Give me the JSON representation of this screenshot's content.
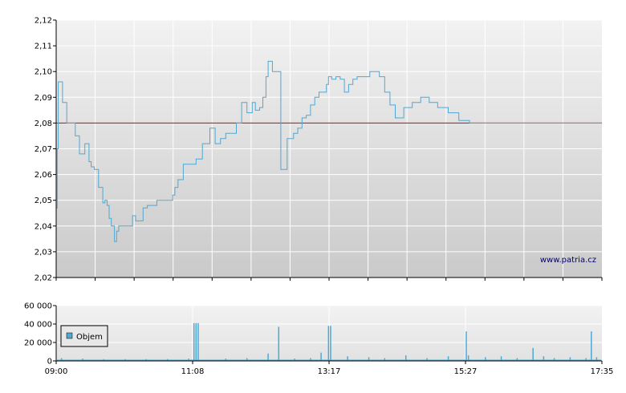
{
  "watermark": "www.patria.cz",
  "colors": {
    "price_line": "#4fa8d4",
    "reference_line": "#cc0000",
    "volume_bar": "#4fa8d4"
  },
  "chart_data": [
    {
      "type": "line",
      "title": "",
      "ylim": [
        2.02,
        2.12
      ],
      "y_ticks": [
        "2,02",
        "2,03",
        "2,04",
        "2,05",
        "2,06",
        "2,07",
        "2,08",
        "2,09",
        "2,10",
        "2,11",
        "2,12"
      ],
      "x_range": [
        "09:00",
        "17:35"
      ],
      "grid": true,
      "reference_line": 2.08,
      "series": [
        {
          "x": [
            "09:00",
            "09:01",
            "09:02",
            "09:04",
            "09:06",
            "09:08",
            "09:10",
            "09:12",
            "09:15",
            "09:18",
            "09:22",
            "09:27",
            "09:31",
            "09:33",
            "09:36",
            "09:40",
            "09:44",
            "09:46",
            "09:48",
            "09:50",
            "09:52",
            "09:55",
            "09:57",
            "09:59",
            "10:02",
            "10:05",
            "10:09",
            "10:12",
            "10:15",
            "10:18",
            "10:22",
            "10:26",
            "10:30",
            "10:35",
            "10:40",
            "10:45",
            "10:50",
            "10:52",
            "10:55",
            "11:00",
            "11:04",
            "11:08",
            "11:12",
            "11:18",
            "11:25",
            "11:30",
            "11:35",
            "11:40",
            "11:45",
            "11:50",
            "11:55",
            "12:00",
            "12:05",
            "12:08",
            "12:12",
            "12:15",
            "12:18",
            "12:20",
            "12:24",
            "12:28",
            "12:32",
            "12:38",
            "12:44",
            "12:48",
            "12:52",
            "12:56",
            "13:00",
            "13:04",
            "13:08",
            "13:12",
            "13:15",
            "13:17",
            "13:20",
            "13:24",
            "13:28",
            "13:32",
            "13:36",
            "13:40",
            "13:44",
            "13:48",
            "13:52",
            "13:56",
            "14:00",
            "14:05",
            "14:10",
            "14:15",
            "14:20",
            "14:28",
            "14:36",
            "14:44",
            "14:52",
            "15:00",
            "15:10",
            "15:20",
            "15:30",
            "15:40",
            "15:50",
            "16:00",
            "16:10",
            "16:20",
            "16:30",
            "16:35",
            "16:40",
            "16:45",
            "16:50",
            "16:55",
            "17:00",
            "17:05",
            "17:10",
            "17:15",
            "17:20",
            "17:25",
            "17:30",
            "17:35"
          ],
          "values": [
            2.047,
            2.07,
            2.096,
            2.096,
            2.088,
            2.088,
            2.08,
            2.08,
            2.08,
            2.075,
            2.068,
            2.072,
            2.065,
            2.063,
            2.062,
            2.055,
            2.049,
            2.05,
            2.048,
            2.043,
            2.04,
            2.034,
            2.038,
            2.04,
            2.04,
            2.04,
            2.04,
            2.044,
            2.042,
            2.042,
            2.047,
            2.048,
            2.048,
            2.05,
            2.05,
            2.05,
            2.052,
            2.055,
            2.058,
            2.064,
            2.064,
            2.064,
            2.066,
            2.072,
            2.078,
            2.072,
            2.074,
            2.076,
            2.076,
            2.08,
            2.088,
            2.084,
            2.088,
            2.085,
            2.086,
            2.09,
            2.098,
            2.104,
            2.1,
            2.1,
            2.062,
            2.074,
            2.076,
            2.078,
            2.082,
            2.083,
            2.087,
            2.09,
            2.092,
            2.092,
            2.095,
            2.098,
            2.097,
            2.098,
            2.097,
            2.092,
            2.095,
            2.097,
            2.098,
            2.098,
            2.098,
            2.1,
            2.1,
            2.098,
            2.092,
            2.087,
            2.082,
            2.086,
            2.088,
            2.09,
            2.088,
            2.086,
            2.084,
            2.081,
            2.08,
            2.08,
            2.08,
            2.08,
            2.08,
            2.08,
            2.08,
            2.08,
            2.08,
            2.08,
            2.08,
            2.08,
            2.08,
            2.08,
            2.08,
            2.08,
            2.08,
            2.08,
            2.08,
            2.08
          ]
        }
      ]
    },
    {
      "type": "bar",
      "title": "",
      "ylim": [
        0,
        60000
      ],
      "y_ticks": [
        "0",
        "20 000",
        "40 000",
        "60 000"
      ],
      "x_ticks": [
        "09:00",
        "11:08",
        "13:17",
        "15:27",
        "17:35"
      ],
      "x_range": [
        "09:00",
        "17:35"
      ],
      "grid": true,
      "legend": {
        "placement": "top-left",
        "entries": [
          "Objem"
        ]
      },
      "series": [
        {
          "name": "Objem",
          "x": [
            "09:05",
            "09:25",
            "09:45",
            "10:05",
            "10:25",
            "10:45",
            "11:05",
            "11:10",
            "11:12",
            "11:14",
            "11:40",
            "12:00",
            "12:20",
            "12:30",
            "12:45",
            "13:00",
            "13:10",
            "13:17",
            "13:19",
            "13:35",
            "13:55",
            "14:10",
            "14:30",
            "14:50",
            "15:10",
            "15:27",
            "15:29",
            "15:45",
            "16:00",
            "16:15",
            "16:30",
            "16:40",
            "16:50",
            "17:05",
            "17:20",
            "17:25",
            "17:30"
          ],
          "values": [
            3000,
            2500,
            2000,
            2000,
            2000,
            2000,
            2500,
            41000,
            41000,
            41000,
            2500,
            3000,
            8000,
            37000,
            2500,
            3000,
            9000,
            38000,
            38000,
            5000,
            4000,
            3000,
            6000,
            3000,
            5000,
            32000,
            6000,
            4000,
            5000,
            3000,
            14000,
            5000,
            3000,
            4000,
            3000,
            32000,
            4000
          ]
        }
      ]
    }
  ]
}
